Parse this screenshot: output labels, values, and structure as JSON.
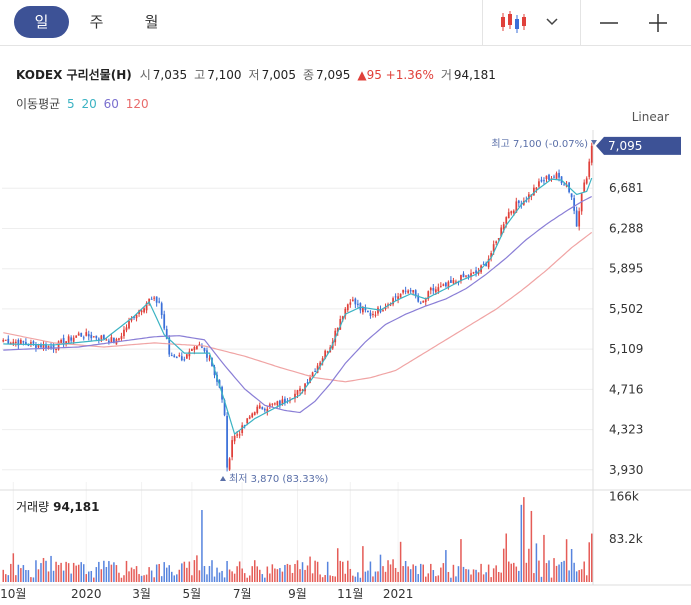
{
  "toolbar": {
    "periods": [
      "일",
      "주",
      "월"
    ],
    "active_period": "일",
    "chart_type_icon": "candlestick-icon",
    "chevron_icon": "chevron-down-icon",
    "zoom_out_icon": "minus-icon",
    "zoom_in_icon": "plus-icon"
  },
  "legend": {
    "name": "KODEX 구리선물(H)",
    "open_label": "시",
    "open": "7,035",
    "high_label": "고",
    "high": "7,100",
    "low_label": "저",
    "low": "7,005",
    "close_label": "종",
    "close": "7,095",
    "change": "▲95 +1.36%",
    "volume_label": "거",
    "volume": "94,181"
  },
  "ma_legend": {
    "title": "이동평균",
    "periods": [
      {
        "label": "5",
        "color": "#3bb3c3"
      },
      {
        "label": "20",
        "color": "#3bb3c3"
      },
      {
        "label": "60",
        "color": "#7a6fcf"
      },
      {
        "label": "120",
        "color": "#e86b6b"
      }
    ]
  },
  "scale_mode": "Linear",
  "colors": {
    "up": "#e0403a",
    "down": "#3a6fd8",
    "ma5": "#3bb3c3",
    "ma60": "#8a7ed6",
    "ma120": "#f0a4a4",
    "accent": "#3d5296",
    "marker": "#5a6fa8"
  },
  "chart_data": {
    "type": "candlestick",
    "y_ticks": [
      "7,095",
      "6,681",
      "6,288",
      "5,895",
      "5,502",
      "5,109",
      "4,716",
      "4,323",
      "3,930"
    ],
    "x_ticks": [
      "10월",
      "2020",
      "3월",
      "5월",
      "7월",
      "9월",
      "11월",
      "2021"
    ],
    "ylim": [
      3850,
      7250
    ],
    "last_price": "7,095",
    "max_marker": "최고 7,100 (-0.07%)",
    "min_marker": "최저 3,870 (83.33%)",
    "close_path": [
      [
        0,
        5200
      ],
      [
        10,
        5160
      ],
      [
        20,
        5130
      ],
      [
        30,
        5250
      ],
      [
        40,
        5220
      ],
      [
        45,
        5180
      ],
      [
        52,
        5440
      ],
      [
        58,
        5590
      ],
      [
        62,
        5570
      ],
      [
        66,
        5060
      ],
      [
        72,
        5020
      ],
      [
        78,
        5140
      ],
      [
        82,
        5030
      ],
      [
        86,
        4720
      ],
      [
        88,
        4480
      ],
      [
        89,
        3920
      ],
      [
        91,
        4230
      ],
      [
        95,
        4330
      ],
      [
        100,
        4520
      ],
      [
        110,
        4580
      ],
      [
        118,
        4700
      ],
      [
        124,
        4920
      ],
      [
        130,
        5150
      ],
      [
        134,
        5410
      ],
      [
        138,
        5600
      ],
      [
        142,
        5500
      ],
      [
        146,
        5450
      ],
      [
        150,
        5500
      ],
      [
        156,
        5620
      ],
      [
        162,
        5700
      ],
      [
        166,
        5530
      ],
      [
        170,
        5680
      ],
      [
        176,
        5720
      ],
      [
        182,
        5800
      ],
      [
        188,
        5850
      ],
      [
        192,
        5950
      ],
      [
        196,
        6150
      ],
      [
        200,
        6420
      ],
      [
        204,
        6520
      ],
      [
        208,
        6580
      ],
      [
        212,
        6700
      ],
      [
        216,
        6780
      ],
      [
        220,
        6800
      ],
      [
        224,
        6720
      ],
      [
        226,
        6600
      ],
      [
        228,
        6320
      ],
      [
        230,
        6660
      ],
      [
        232,
        6780
      ],
      [
        234,
        7095
      ]
    ],
    "ma5": [
      [
        0,
        5160
      ],
      [
        20,
        5150
      ],
      [
        40,
        5200
      ],
      [
        52,
        5430
      ],
      [
        58,
        5570
      ],
      [
        64,
        5250
      ],
      [
        72,
        5070
      ],
      [
        82,
        5070
      ],
      [
        88,
        4600
      ],
      [
        92,
        4280
      ],
      [
        100,
        4430
      ],
      [
        110,
        4560
      ],
      [
        118,
        4660
      ],
      [
        124,
        4860
      ],
      [
        130,
        5100
      ],
      [
        136,
        5450
      ],
      [
        142,
        5520
      ],
      [
        150,
        5490
      ],
      [
        156,
        5580
      ],
      [
        162,
        5650
      ],
      [
        168,
        5600
      ],
      [
        176,
        5700
      ],
      [
        182,
        5780
      ],
      [
        188,
        5840
      ],
      [
        194,
        6000
      ],
      [
        200,
        6320
      ],
      [
        206,
        6520
      ],
      [
        212,
        6660
      ],
      [
        218,
        6770
      ],
      [
        222,
        6760
      ],
      [
        228,
        6620
      ],
      [
        232,
        6650
      ],
      [
        234,
        6780
      ]
    ],
    "ma60": [
      [
        0,
        5100
      ],
      [
        30,
        5130
      ],
      [
        60,
        5230
      ],
      [
        70,
        5240
      ],
      [
        80,
        5200
      ],
      [
        88,
        4950
      ],
      [
        96,
        4720
      ],
      [
        104,
        4560
      ],
      [
        112,
        4510
      ],
      [
        118,
        4490
      ],
      [
        124,
        4600
      ],
      [
        130,
        4770
      ],
      [
        136,
        4970
      ],
      [
        144,
        5180
      ],
      [
        152,
        5350
      ],
      [
        160,
        5450
      ],
      [
        168,
        5530
      ],
      [
        176,
        5600
      ],
      [
        184,
        5700
      ],
      [
        192,
        5840
      ],
      [
        200,
        6000
      ],
      [
        208,
        6180
      ],
      [
        216,
        6330
      ],
      [
        224,
        6460
      ],
      [
        230,
        6550
      ],
      [
        234,
        6600
      ]
    ],
    "ma120": [
      [
        0,
        5270
      ],
      [
        20,
        5170
      ],
      [
        40,
        5130
      ],
      [
        60,
        5170
      ],
      [
        80,
        5140
      ],
      [
        96,
        5040
      ],
      [
        110,
        4930
      ],
      [
        124,
        4830
      ],
      [
        136,
        4790
      ],
      [
        146,
        4830
      ],
      [
        156,
        4900
      ],
      [
        166,
        5050
      ],
      [
        176,
        5200
      ],
      [
        186,
        5350
      ],
      [
        196,
        5500
      ],
      [
        206,
        5680
      ],
      [
        216,
        5880
      ],
      [
        226,
        6100
      ],
      [
        234,
        6250
      ]
    ],
    "bars": 235,
    "volume_label": "거래량",
    "volume": "94,181",
    "volume_ticks": [
      "166k",
      "83.2k"
    ],
    "volume_max": 175000
  }
}
